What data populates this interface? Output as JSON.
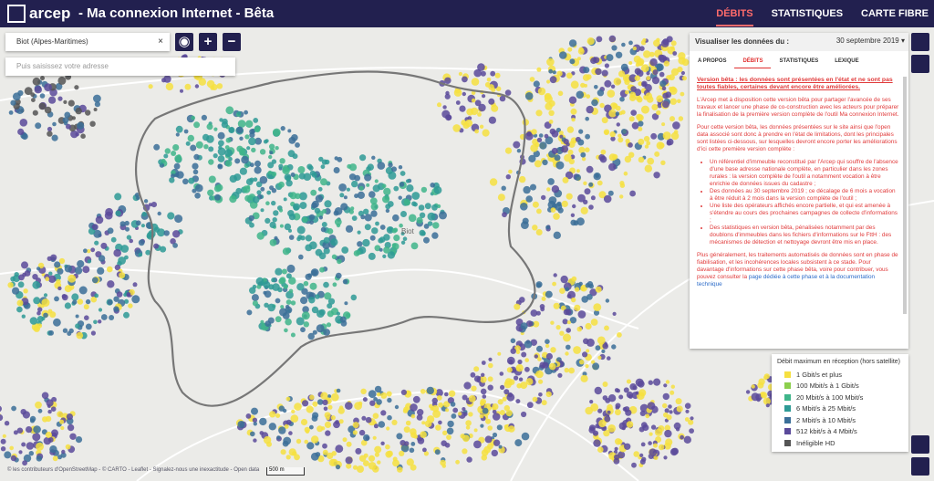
{
  "header": {
    "logo": "arcep",
    "title": "- Ma connexion Internet - Bêta",
    "nav": [
      "DÉBITS",
      "STATISTIQUES",
      "CARTE FIBRE"
    ]
  },
  "search": {
    "commune": "Biot (Alpes-Maritimes)",
    "address_placeholder": "Puis saisissez votre adresse"
  },
  "panel": {
    "label": "Visualiser les données du :",
    "date": "30 septembre 2019",
    "tabs": [
      "A PROPOS",
      "DÉBITS",
      "STATISTIQUES",
      "LEXIQUE"
    ],
    "warning": "Version bêta : les données sont présentées en l'état et ne sont pas toutes fiables, certaines devant encore être améliorées.",
    "paragraphs": [
      "L'Arcep met à disposition cette version bêta pour partager l'avancée de ses travaux et lancer une phase de co-construction avec les acteurs pour préparer la finalisation de la première version complète de l'outil Ma connexion Internet.",
      "Pour cette version bêta, les données présentées sur le site ainsi que l'open data associé sont donc à prendre en l'état de limitations, dont les principales sont listées ci-dessous, sur lesquelles devront encore porter les améliorations d'ici cette première version complète :"
    ],
    "limitations": [
      "Un référentiel d'immeuble reconstitué par l'Arcep qui souffre de l'absence d'une base adresse nationale complète, en particulier dans les zones rurales : la version complète de l'outil a notamment vocation à être enrichie de données issues du cadastre ;",
      "Des données au 30 septembre 2019 ; ce décalage de 6 mois a vocation à être réduit à 2 mois dans la version complète de l'outil ;",
      "Une liste des opérateurs affichés encore partielle, et qui est amenée à s'étendre au cours des prochaines campagnes de collecte d'informations ;",
      "Des statistiques en version bêta, pénalisées notamment par des doublons d'immeubles dans les fichiers d'informations sur le FttH : des mécanismes de détection et nettoyage devront être mis en place."
    ],
    "closing": "Plus généralement, les traitements automatisés de données sont en phase de fiabilisation, et les incohérences locales subsistent à ce stade. Pour davantage d'informations sur cette phase bêta, voire pour contribuer, vous pouvez consulter la",
    "closing_link": "page dédiée à cette phase et à la documentation technique"
  },
  "legend": {
    "title": "Débit maximum en réception (hors satellite)",
    "items": [
      {
        "label": "1 Gbit/s et plus",
        "color": "#f6e040"
      },
      {
        "label": "100 Mbit/s à 1 Gbit/s",
        "color": "#8ccf4d"
      },
      {
        "label": "20 Mbit/s à 100 Mbit/s",
        "color": "#3fb58a"
      },
      {
        "label": "6 Mbit/s à 25 Mbit/s",
        "color": "#2e9a95"
      },
      {
        "label": "2 Mbit/s à 10 Mbit/s",
        "color": "#3b6f98"
      },
      {
        "label": "512 kbit/s à 4 Mbit/s",
        "color": "#5a4a9a"
      },
      {
        "label": "Inéligible HD",
        "color": "#555555"
      }
    ]
  },
  "map": {
    "place": "Biot",
    "scale": "500 m",
    "attribution": "© les contributeurs d'OpenStreetMap - © CARTO - Leaflet - Signalez-nous une inexactitude - Open data"
  }
}
